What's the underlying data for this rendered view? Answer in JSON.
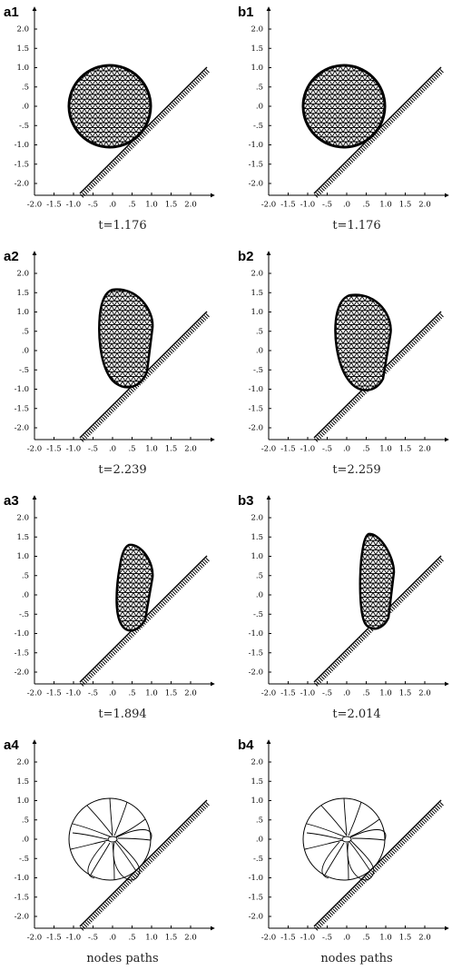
{
  "axes": {
    "xticks": [
      {
        "value": -2,
        "label": "-2.0"
      },
      {
        "value": -1.5,
        "label": "-1.5"
      },
      {
        "value": -1,
        "label": "-1.0"
      },
      {
        "value": -0.5,
        "label": "-.5"
      },
      {
        "value": 0,
        "label": ".0"
      },
      {
        "value": 0.5,
        "label": ".5"
      },
      {
        "value": 1,
        "label": "1.0"
      },
      {
        "value": 1.5,
        "label": "1.5"
      },
      {
        "value": 2,
        "label": "2.0"
      }
    ],
    "yticks": [
      {
        "value": 2,
        "label": "2.0"
      },
      {
        "value": 1.5,
        "label": "1.5"
      },
      {
        "value": 1,
        "label": "1.0"
      },
      {
        "value": 0.5,
        "label": ".5"
      },
      {
        "value": 0,
        "label": ".0"
      },
      {
        "value": -0.5,
        "label": "-.5"
      },
      {
        "value": -1,
        "label": "-1.0"
      },
      {
        "value": -1.5,
        "label": "-1.5"
      },
      {
        "value": -2,
        "label": "-2.0"
      }
    ]
  },
  "panels": [
    {
      "label": "a1",
      "caption": "t=1.176"
    },
    {
      "label": "b1",
      "caption": "t=1.176"
    },
    {
      "label": "a2",
      "caption": "t=2.239"
    },
    {
      "label": "b2",
      "caption": "t=2.259"
    },
    {
      "label": "a3",
      "caption": "t=1.894"
    },
    {
      "label": "b3",
      "caption": "t=2.014"
    },
    {
      "label": "a4",
      "caption": "nodes paths"
    },
    {
      "label": "b4",
      "caption": "nodes paths"
    }
  ]
}
